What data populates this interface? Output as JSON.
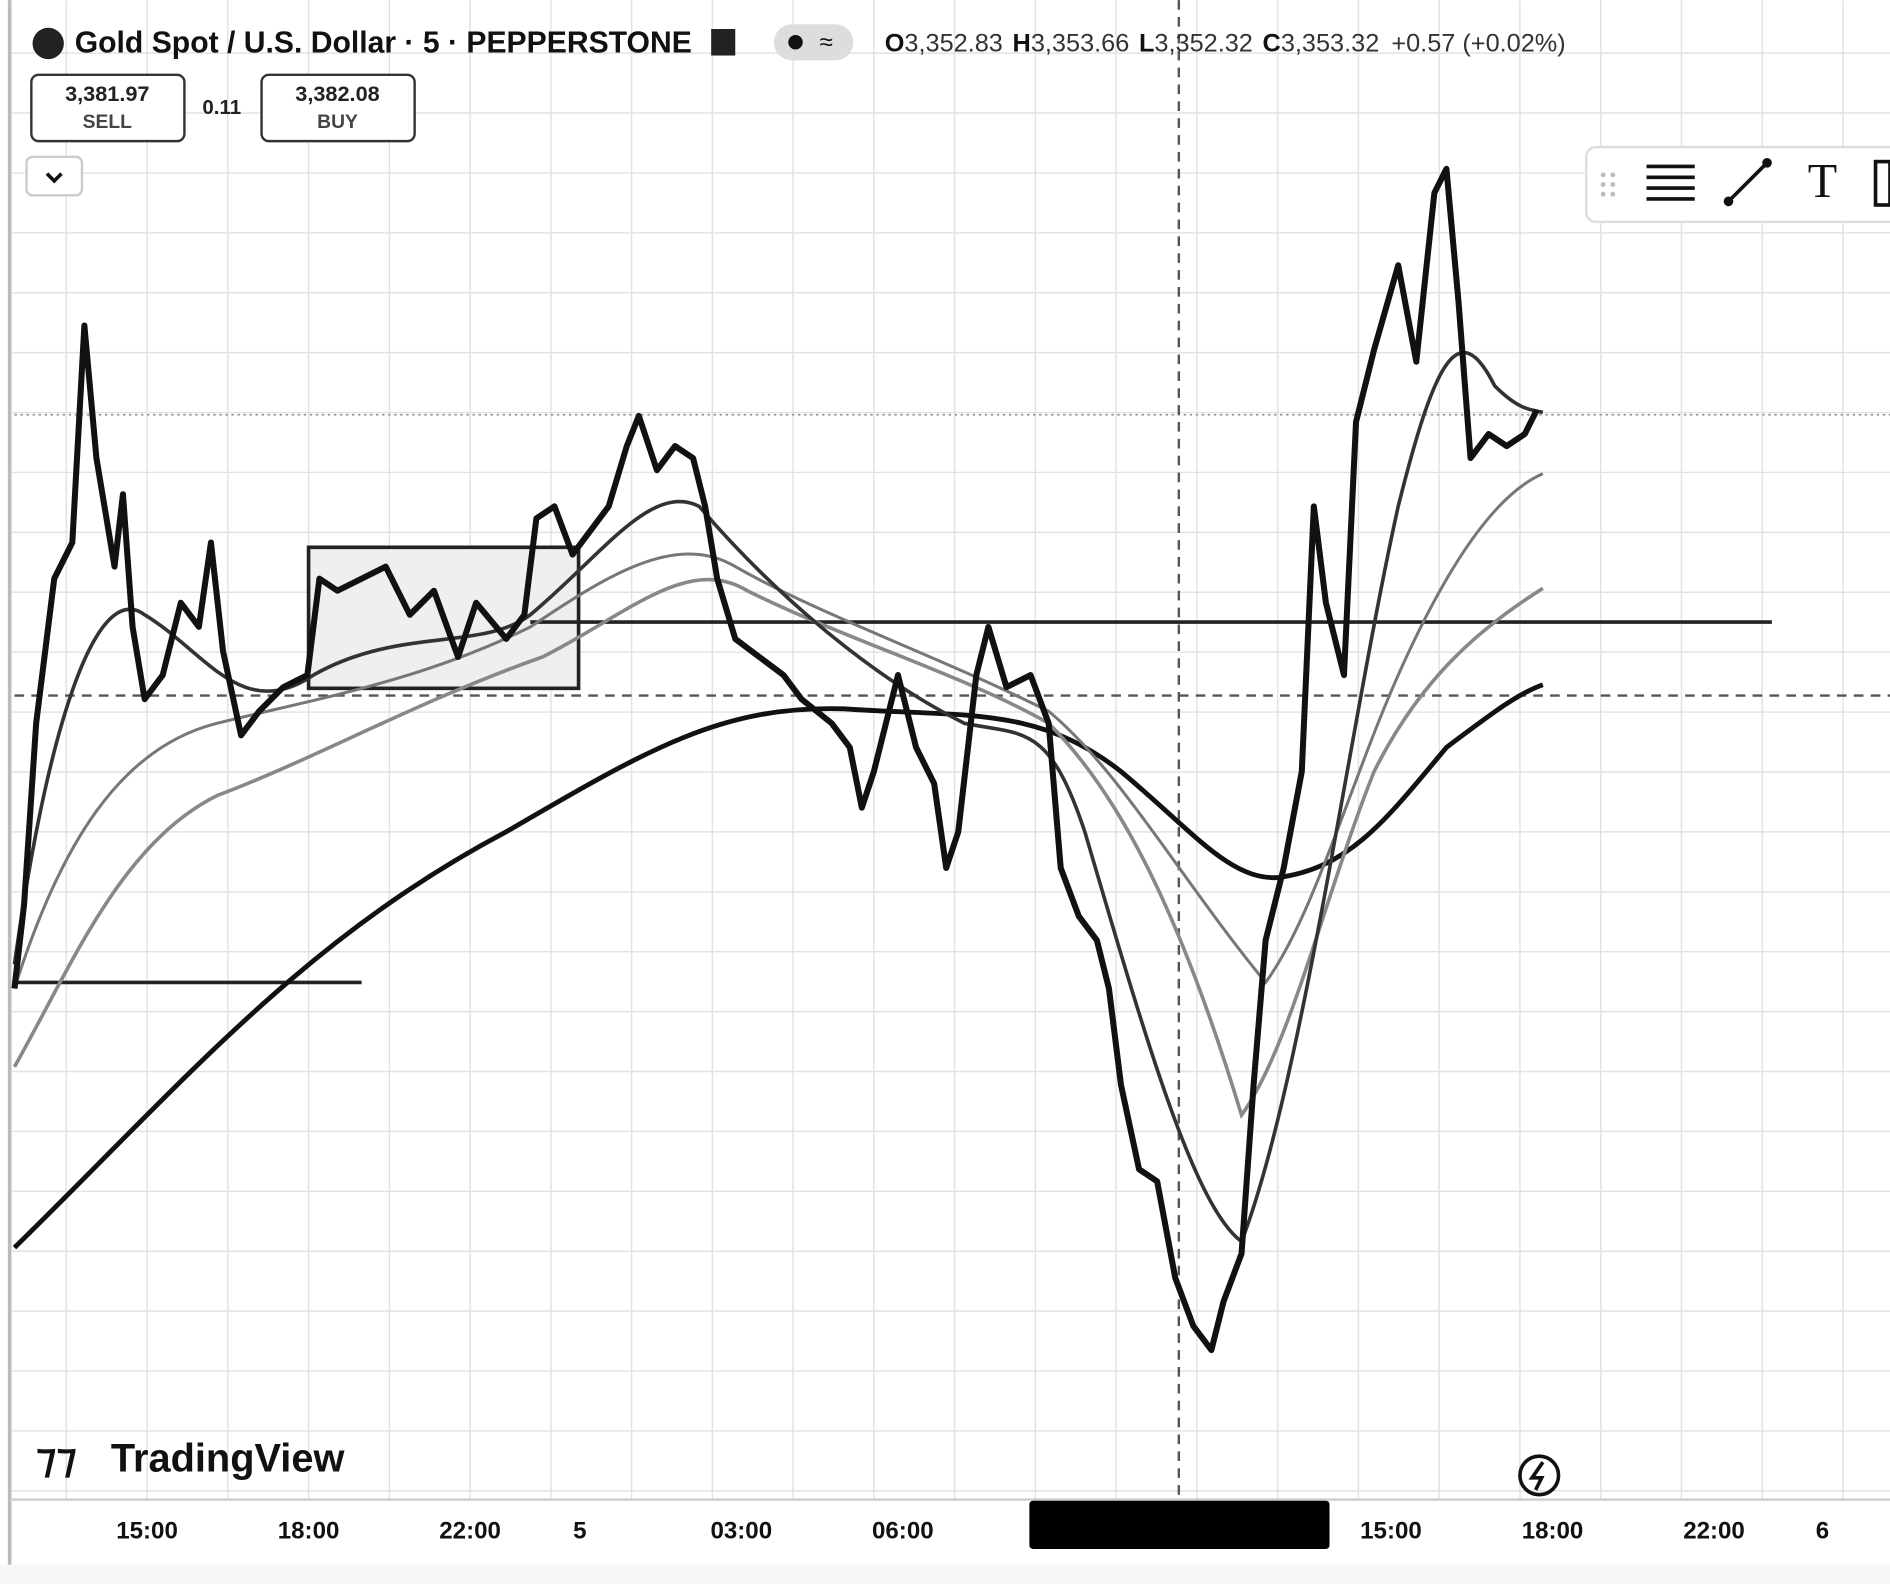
{
  "header": {
    "symbol": "Gold Spot / U.S. Dollar · 5 · PEPPERSTONE",
    "ohlc": [
      {
        "key": "O",
        "value": "3,352.83"
      },
      {
        "key": "H",
        "value": "3,353.66"
      },
      {
        "key": "L",
        "value": "3,352.32"
      },
      {
        "key": "C",
        "value": "3,353.32"
      }
    ],
    "change": "+0.57 (+0.02%)"
  },
  "trade": {
    "sell_price": "3,381.97",
    "sell": "SELL",
    "spread": "0.11",
    "buy_price": "3,382.08",
    "buy": "BUY"
  },
  "watermark": "TradingView",
  "time_axis": [
    "15:00",
    "18:00",
    "22:00",
    "5",
    "03:00",
    "06:00",
    "15:00",
    "18:00",
    "22:00",
    "6"
  ]
}
